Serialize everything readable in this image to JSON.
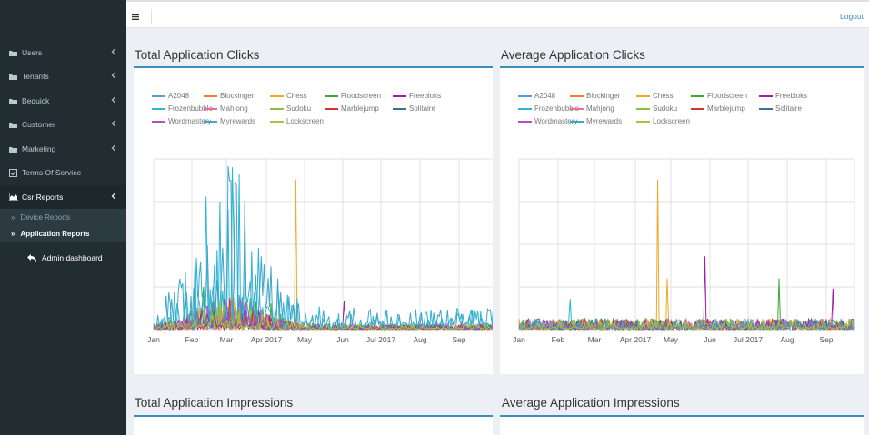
{
  "topbar": {
    "menu_icon": "hamburger-icon",
    "logout_label": "Logout"
  },
  "sidebar": {
    "items": [
      {
        "label": "Users",
        "icon": "folder-icon"
      },
      {
        "label": "Tenants",
        "icon": "folder-icon"
      },
      {
        "label": "Bequick",
        "icon": "folder-icon"
      },
      {
        "label": "Customer",
        "icon": "folder-icon"
      },
      {
        "label": "Marketing",
        "icon": "folder-icon"
      },
      {
        "label": "Terms Of Service",
        "icon": "checkbox-icon"
      },
      {
        "label": "Csr Reports",
        "icon": "area-chart-icon"
      }
    ],
    "sub_items": [
      {
        "label": "Device Reports"
      },
      {
        "label": "Application Reports"
      }
    ],
    "admin_label": "Admin dashboard"
  },
  "panels": {
    "total_clicks_title": "Total Application Clicks",
    "avg_clicks_title": "Average Application Clicks",
    "total_impressions_title": "Total Application Impressions",
    "avg_impressions_title": "Average  Application Impressions"
  },
  "colors": {
    "sidebar_bg": "#222d32",
    "accent": "#3c8dbc",
    "page_bg": "#ecf0f5"
  },
  "chart_data": [
    {
      "type": "line",
      "title": "Total Application Clicks",
      "x_ticks": [
        "Jan",
        "Feb",
        "Mar",
        "Apr 2017",
        "May",
        "Jun",
        "Jul 2017",
        "Aug",
        "Sep"
      ],
      "series": [
        {
          "name": "A2048",
          "color": "#5b9bd5"
        },
        {
          "name": "Blockinger",
          "color": "#ed7d31"
        },
        {
          "name": "Chess",
          "color": "#f5a623"
        },
        {
          "name": "Floodscreen",
          "color": "#3aa935"
        },
        {
          "name": "Freebloks",
          "color": "#a01ea8"
        },
        {
          "name": "Frozenbubble",
          "color": "#2bb5d6"
        },
        {
          "name": "Mahjong",
          "color": "#f06c9b"
        },
        {
          "name": "Sudoku",
          "color": "#8fbf3c"
        },
        {
          "name": "Marblejump",
          "color": "#d0342c"
        },
        {
          "name": "Solitaire",
          "color": "#3a6ea5"
        },
        {
          "name": "Wordmastery",
          "color": "#b84fbf"
        },
        {
          "name": "Myrewards",
          "color": "#3fa7c7"
        },
        {
          "name": "Lockscreen",
          "color": "#a7c23b"
        }
      ]
    },
    {
      "type": "line",
      "title": "Average Application Clicks",
      "x_ticks": [
        "Jan",
        "Feb",
        "Mar",
        "Apr 2017",
        "May",
        "Jun",
        "Jul 2017",
        "Aug",
        "Sep"
      ],
      "series": [
        {
          "name": "A2048",
          "color": "#5b9bd5"
        },
        {
          "name": "Blockinger",
          "color": "#ed7d31"
        },
        {
          "name": "Chess",
          "color": "#f5a623"
        },
        {
          "name": "Floodscreen",
          "color": "#3aa935"
        },
        {
          "name": "Freebloks",
          "color": "#a01ea8"
        },
        {
          "name": "Frozenbubble",
          "color": "#2bb5d6"
        },
        {
          "name": "Mahjong",
          "color": "#f06c9b"
        },
        {
          "name": "Sudoku",
          "color": "#8fbf3c"
        },
        {
          "name": "Marblejump",
          "color": "#d0342c"
        },
        {
          "name": "Solitaire",
          "color": "#3a6ea5"
        },
        {
          "name": "Wordmastery",
          "color": "#b84fbf"
        },
        {
          "name": "Myrewards",
          "color": "#3fa7c7"
        },
        {
          "name": "Lockscreen",
          "color": "#a7c23b"
        }
      ]
    }
  ]
}
